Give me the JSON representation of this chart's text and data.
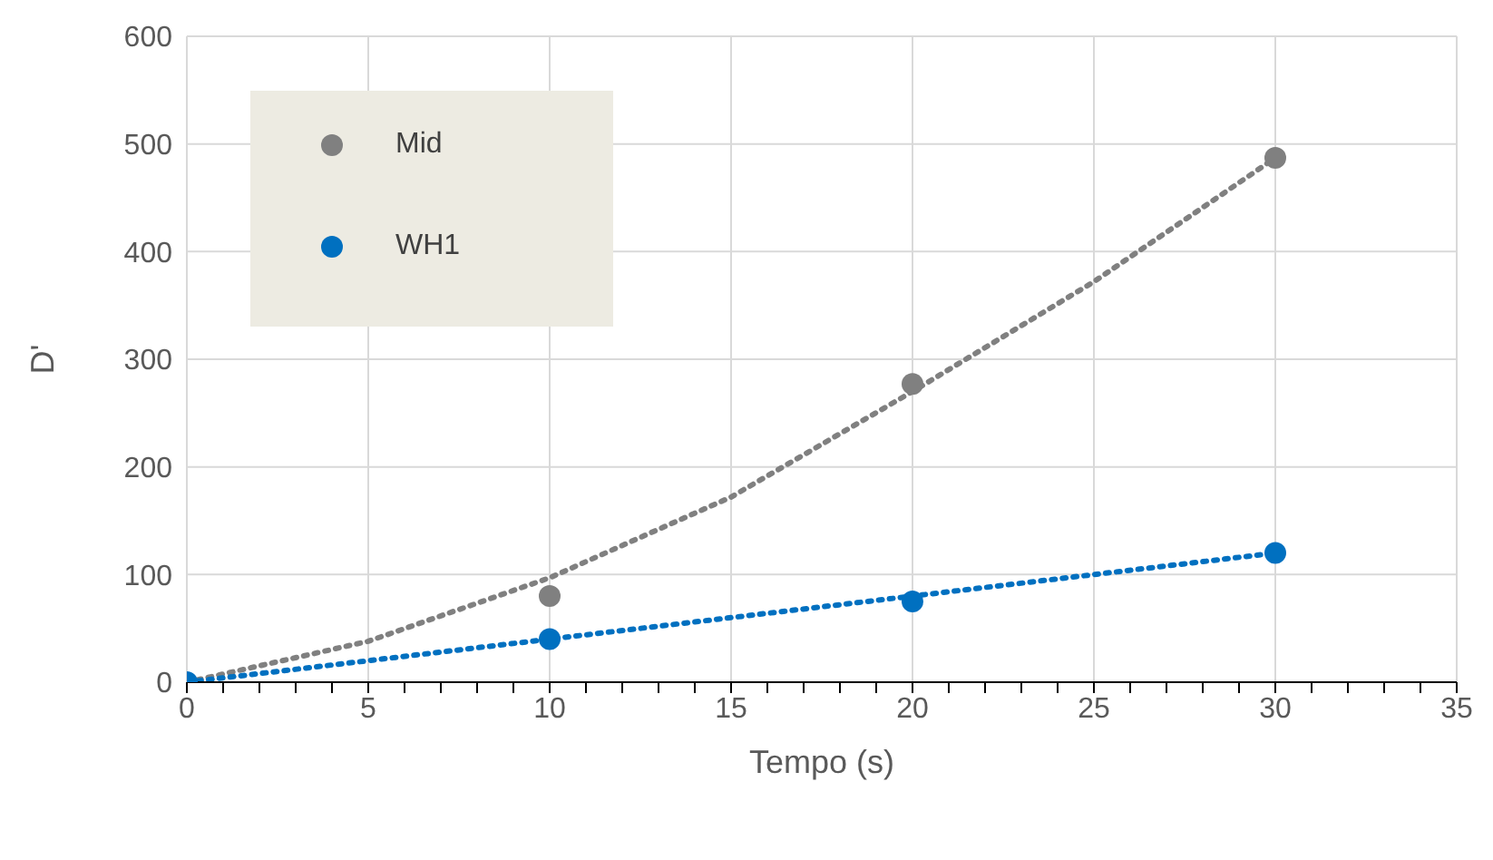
{
  "chart_data": {
    "type": "scatter",
    "xlabel": "Tempo (s)",
    "ylabel": "D'",
    "xlim": [
      0,
      35
    ],
    "ylim": [
      0,
      600
    ],
    "xticks": [
      0,
      {
        "value": 1,
        "label": null
      },
      {
        "value": 2,
        "label": null
      },
      {
        "value": 3,
        "label": null
      },
      {
        "value": 4,
        "label": null
      },
      5,
      {
        "value": 6,
        "label": null
      },
      {
        "value": 7,
        "label": null
      },
      {
        "value": 8,
        "label": null
      },
      {
        "value": 9,
        "label": null
      },
      10,
      {
        "value": 11,
        "label": null
      },
      {
        "value": 12,
        "label": null
      },
      {
        "value": 13,
        "label": null
      },
      {
        "value": 14,
        "label": null
      },
      15,
      {
        "value": 16,
        "label": null
      },
      {
        "value": 17,
        "label": null
      },
      {
        "value": 18,
        "label": null
      },
      {
        "value": 19,
        "label": null
      },
      20,
      {
        "value": 21,
        "label": null
      },
      {
        "value": 22,
        "label": null
      },
      {
        "value": 23,
        "label": null
      },
      {
        "value": 24,
        "label": null
      },
      25,
      {
        "value": 26,
        "label": null
      },
      {
        "value": 27,
        "label": null
      },
      {
        "value": 28,
        "label": null
      },
      {
        "value": 29,
        "label": null
      },
      30,
      {
        "value": 31,
        "label": null
      },
      {
        "value": 32,
        "label": null
      },
      {
        "value": 33,
        "label": null
      },
      {
        "value": 34,
        "label": null
      },
      35
    ],
    "yticks": [
      0,
      100,
      200,
      300,
      400,
      500,
      600
    ],
    "grid": true,
    "legend": "top left",
    "marker": "circle",
    "series": [
      {
        "type": "line",
        "line_style": "dotted",
        "marker": "none",
        "color": "#808080",
        "x": [
          0,
          5,
          10,
          15,
          20,
          25,
          30
        ],
        "values": [
          0,
          38,
          97,
          172,
          270,
          372,
          487
        ]
      },
      {
        "type": "line",
        "line_style": "dotted",
        "marker": "none",
        "color": "#0070c0",
        "x": [
          0,
          5,
          10,
          15,
          20,
          25,
          30
        ],
        "values": [
          0,
          20,
          40,
          60,
          80,
          100,
          120
        ]
      },
      {
        "name": "Mid",
        "color": "#808080",
        "x": [
          10,
          20,
          30
        ],
        "values": [
          80,
          277,
          487
        ]
      },
      {
        "name": "WH1",
        "color": "#0070c0",
        "x": [
          0,
          10,
          20,
          30
        ],
        "values": [
          0,
          40,
          75,
          120
        ]
      }
    ]
  }
}
